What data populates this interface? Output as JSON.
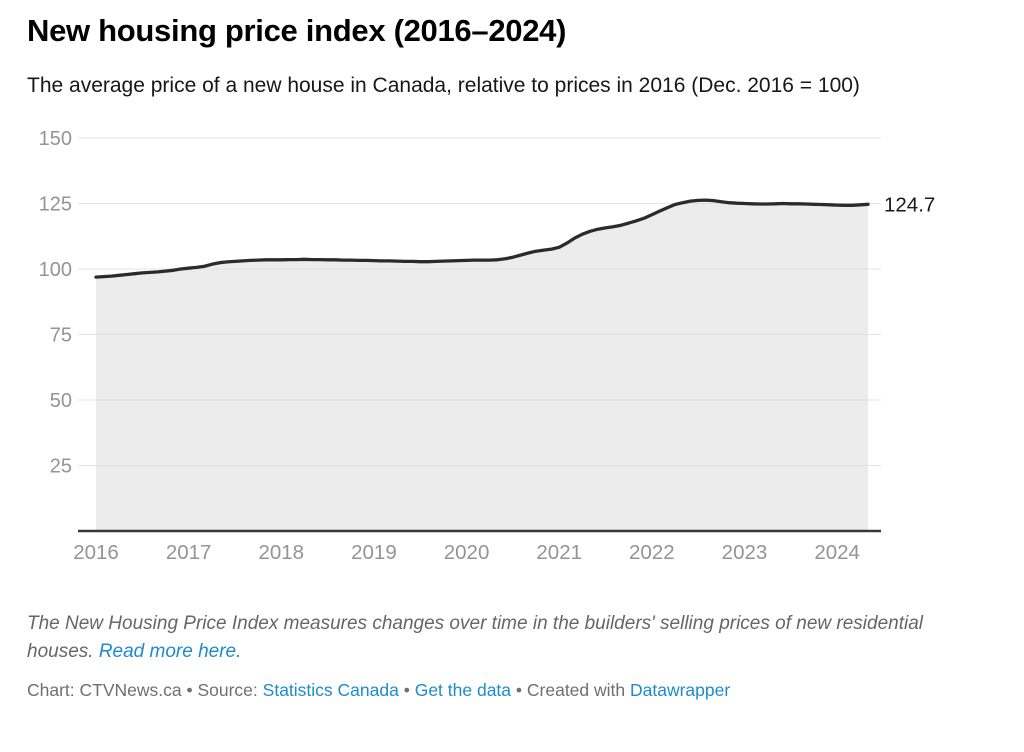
{
  "header": {
    "title": "New housing price index (2016–2024)",
    "subtitle": "The average price of a new house in Canada, relative to prices in 2016 (Dec. 2016 = 100)"
  },
  "chart_data": {
    "type": "area",
    "title": "New housing price index (2016–2024)",
    "series_name": "New housing price index",
    "x": [
      "2016-01",
      "2016-02",
      "2016-03",
      "2016-04",
      "2016-05",
      "2016-06",
      "2016-07",
      "2016-08",
      "2016-09",
      "2016-10",
      "2016-11",
      "2016-12",
      "2017-01",
      "2017-02",
      "2017-03",
      "2017-04",
      "2017-05",
      "2017-06",
      "2017-07",
      "2017-08",
      "2017-09",
      "2017-10",
      "2017-11",
      "2017-12",
      "2018-01",
      "2018-02",
      "2018-03",
      "2018-04",
      "2018-05",
      "2018-06",
      "2018-07",
      "2018-08",
      "2018-09",
      "2018-10",
      "2018-11",
      "2018-12",
      "2019-01",
      "2019-02",
      "2019-03",
      "2019-04",
      "2019-05",
      "2019-06",
      "2019-07",
      "2019-08",
      "2019-09",
      "2019-10",
      "2019-11",
      "2019-12",
      "2020-01",
      "2020-02",
      "2020-03",
      "2020-04",
      "2020-05",
      "2020-06",
      "2020-07",
      "2020-08",
      "2020-09",
      "2020-10",
      "2020-11",
      "2020-12",
      "2021-01",
      "2021-02",
      "2021-03",
      "2021-04",
      "2021-05",
      "2021-06",
      "2021-07",
      "2021-08",
      "2021-09",
      "2021-10",
      "2021-11",
      "2021-12",
      "2022-01",
      "2022-02",
      "2022-03",
      "2022-04",
      "2022-05",
      "2022-06",
      "2022-07",
      "2022-08",
      "2022-09",
      "2022-10",
      "2022-11",
      "2022-12",
      "2023-01",
      "2023-02",
      "2023-03",
      "2023-04",
      "2023-05",
      "2023-06",
      "2023-07",
      "2023-08",
      "2023-09",
      "2023-10",
      "2023-11",
      "2023-12",
      "2024-01",
      "2024-02",
      "2024-03",
      "2024-04",
      "2024-05"
    ],
    "values": [
      96.9,
      97.1,
      97.3,
      97.6,
      97.9,
      98.2,
      98.5,
      98.7,
      98.9,
      99.2,
      99.5,
      100.0,
      100.3,
      100.6,
      101.0,
      101.8,
      102.4,
      102.7,
      102.9,
      103.1,
      103.3,
      103.4,
      103.5,
      103.5,
      103.5,
      103.6,
      103.6,
      103.7,
      103.6,
      103.6,
      103.5,
      103.5,
      103.4,
      103.4,
      103.3,
      103.3,
      103.2,
      103.1,
      103.1,
      103.0,
      102.9,
      102.9,
      102.8,
      102.8,
      102.9,
      103.0,
      103.1,
      103.2,
      103.3,
      103.4,
      103.4,
      103.4,
      103.5,
      103.9,
      104.5,
      105.3,
      106.1,
      106.8,
      107.2,
      107.6,
      108.3,
      109.9,
      111.8,
      113.3,
      114.4,
      115.2,
      115.7,
      116.1,
      116.7,
      117.5,
      118.4,
      119.4,
      120.7,
      122.1,
      123.4,
      124.6,
      125.3,
      125.9,
      126.2,
      126.3,
      126.1,
      125.7,
      125.3,
      125.1,
      125.0,
      124.9,
      124.8,
      124.8,
      124.9,
      125.0,
      124.9,
      124.9,
      124.8,
      124.7,
      124.6,
      124.5,
      124.4,
      124.3,
      124.3,
      124.5,
      124.7
    ],
    "end_label": "124.7",
    "yticks": [
      150,
      125,
      100,
      75,
      50,
      25
    ],
    "xticks": [
      "2016",
      "2017",
      "2018",
      "2019",
      "2020",
      "2021",
      "2022",
      "2023",
      "2024"
    ],
    "ylim": [
      0,
      150
    ],
    "grid": "horizontal",
    "legend": "none",
    "colors": {
      "line": "#2b2b2b",
      "area": "#d9d9d9",
      "grid": "#e4e4e4",
      "baseline": "#383838",
      "axis_text": "#949494",
      "end_label": "#1a1a1a"
    }
  },
  "notes": {
    "text": "The New Housing Price Index measures changes over time in the builders' selling prices of new residential houses. ",
    "link": "Read more here."
  },
  "attribution": {
    "prefix": "Chart: CTVNews.ca • Source: ",
    "source_link": "Statistics Canada",
    "sep1": " • ",
    "data_link": "Get the data",
    "sep2": " • Created with ",
    "tool_link": "Datawrapper"
  }
}
